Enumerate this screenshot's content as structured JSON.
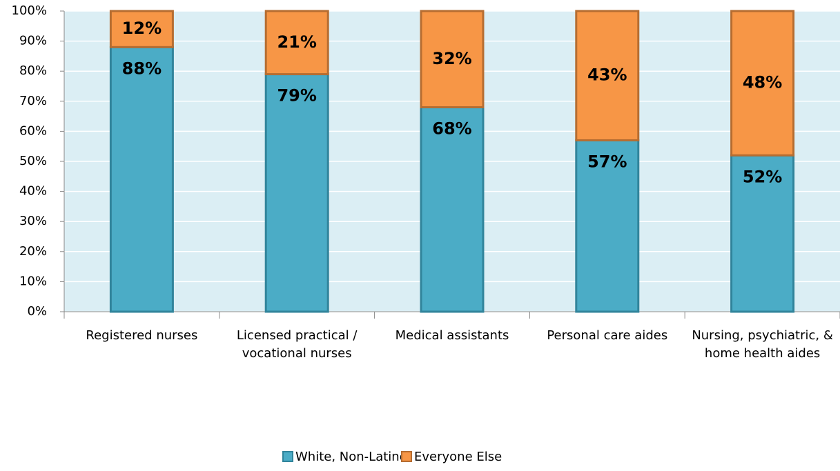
{
  "chart_data": {
    "type": "stacked_bar",
    "categories": [
      "Registered nurses",
      "Licensed practical / vocational nurses",
      "Medical assistants",
      "Personal care aides",
      "Nursing, psychiatric, & home health aides"
    ],
    "series": [
      {
        "name": "White, Non-Latino",
        "color": "#4bacc6",
        "values": [
          88,
          79,
          68,
          57,
          52
        ],
        "value_labels": [
          "88%",
          "79%",
          "68%",
          "57%",
          "52%"
        ]
      },
      {
        "name": "Everyone Else",
        "color": "#f79646",
        "values": [
          12,
          21,
          32,
          43,
          48
        ],
        "value_labels": [
          "12%",
          "21%",
          "32%",
          "43%",
          "48%"
        ]
      }
    ],
    "ylim": [
      0,
      100
    ],
    "yticks": [
      {
        "value": 0,
        "label": "0%"
      },
      {
        "value": 10,
        "label": "10%"
      },
      {
        "value": 20,
        "label": "20%"
      },
      {
        "value": 30,
        "label": "30%"
      },
      {
        "value": 40,
        "label": "40%"
      },
      {
        "value": 50,
        "label": "50%"
      },
      {
        "value": 60,
        "label": "60%"
      },
      {
        "value": 70,
        "label": "70%"
      },
      {
        "value": 80,
        "label": "80%"
      },
      {
        "value": 90,
        "label": "90%"
      },
      {
        "value": 100,
        "label": "100%"
      }
    ],
    "grid": true,
    "legend": "bottom"
  }
}
